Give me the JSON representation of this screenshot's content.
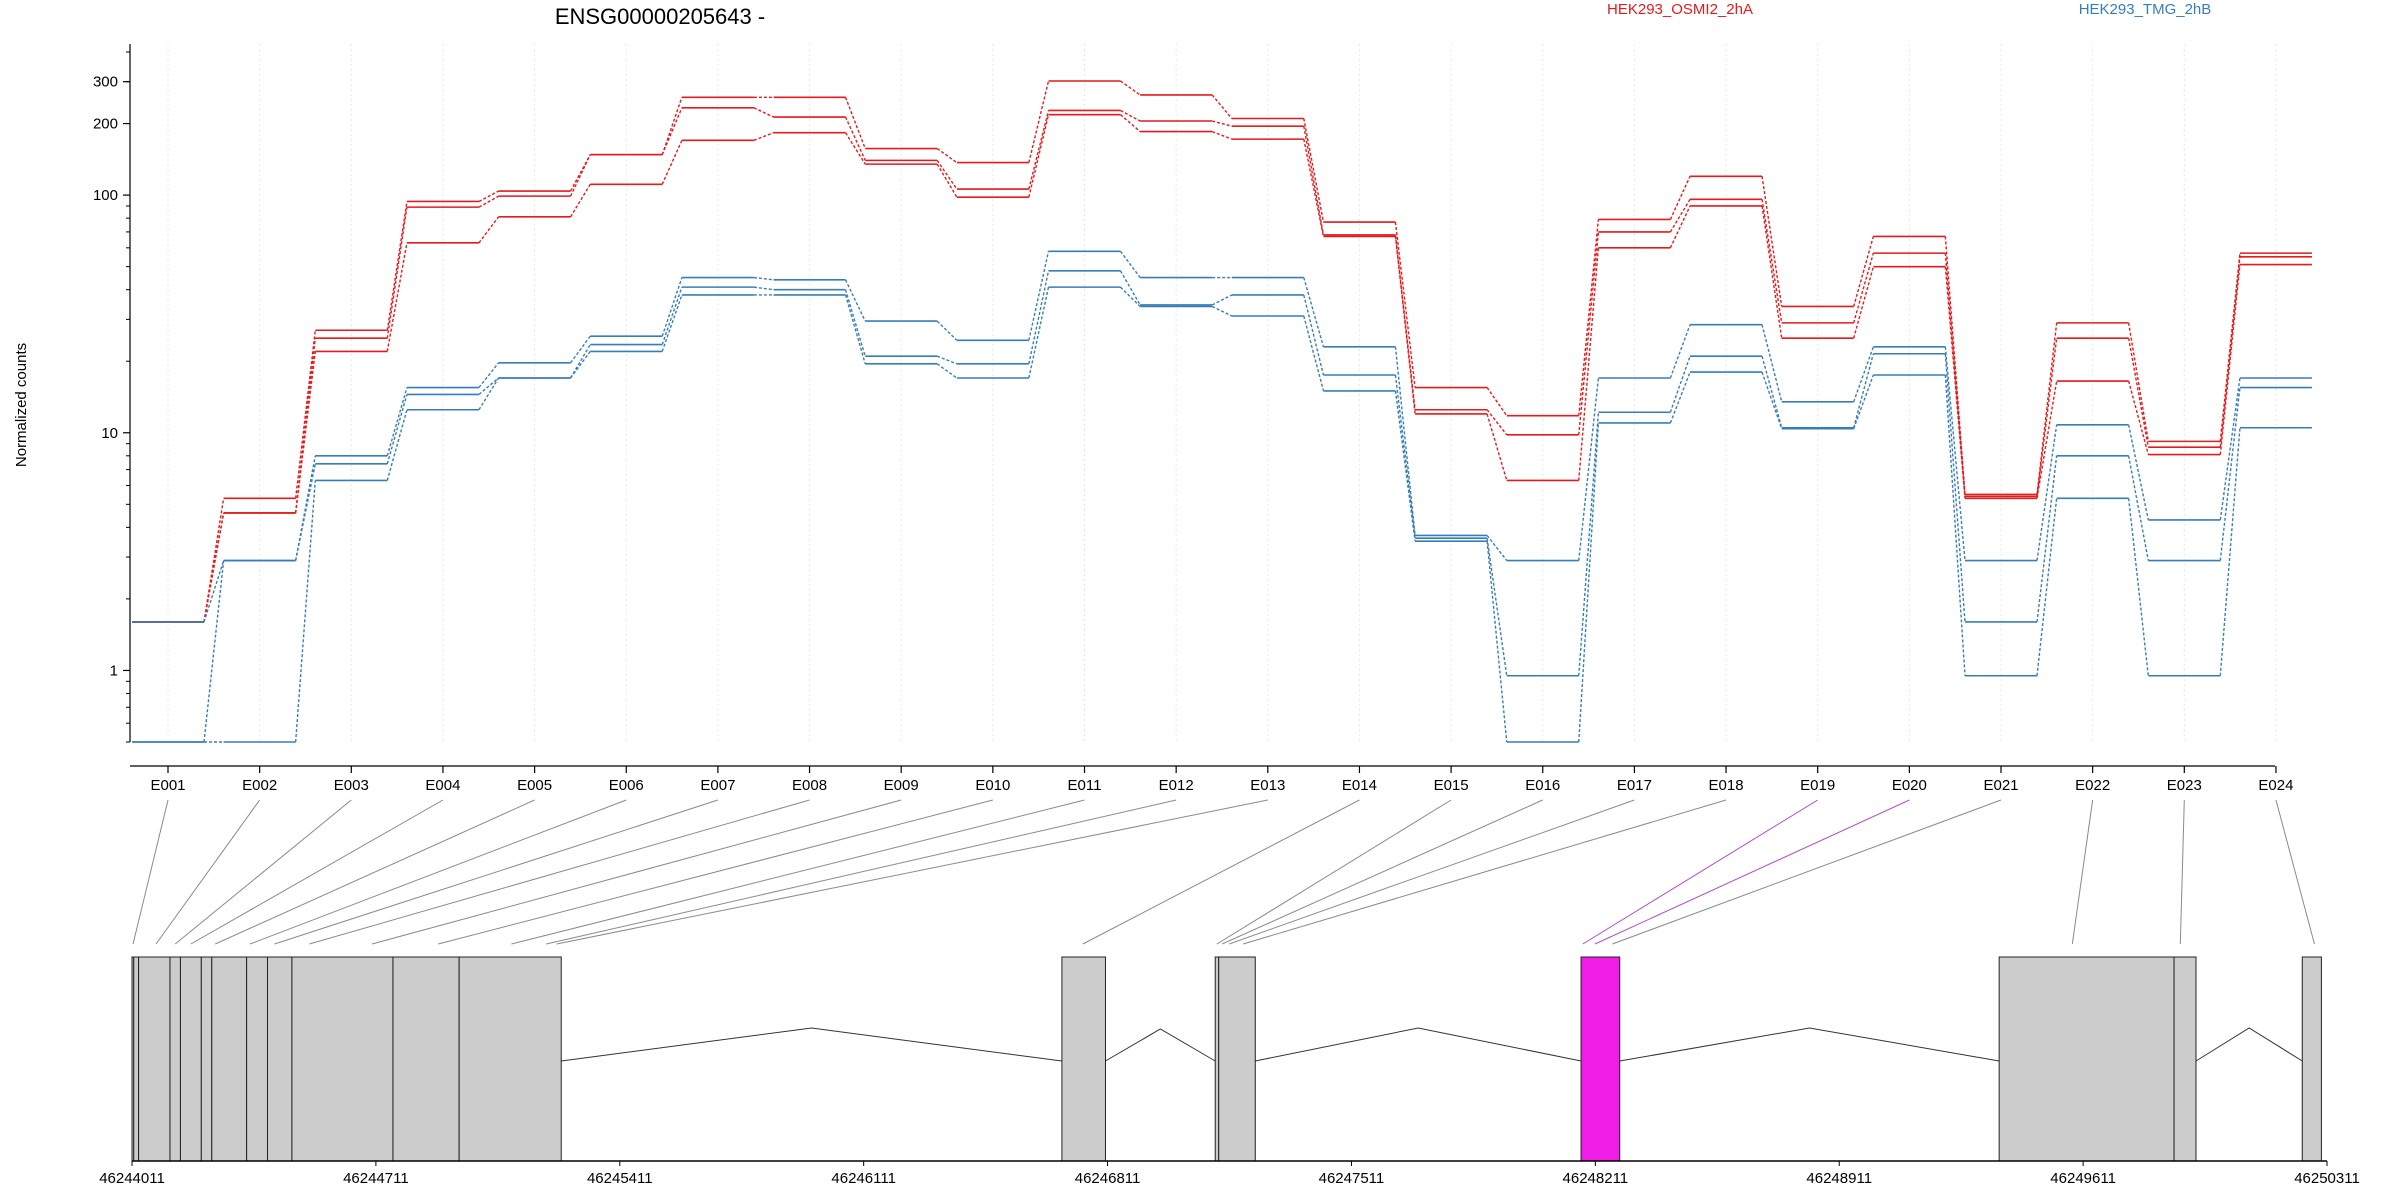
{
  "chart_data": {
    "type": "line",
    "title": "ENSG00000205643 -",
    "ylabel": "Normalized counts",
    "yscale": "log",
    "ylim": [
      0.5,
      400
    ],
    "yticks": [
      1,
      10,
      100,
      200,
      300
    ],
    "ytick_labels": [
      "1",
      "10",
      "100",
      "200",
      "300"
    ],
    "grid": "vertical",
    "legend_position": "top",
    "categories": [
      "E001",
      "E002",
      "E003",
      "E004",
      "E005",
      "E006",
      "E007",
      "E008",
      "E009",
      "E010",
      "E011",
      "E012",
      "E013",
      "E014",
      "E015",
      "E016",
      "E017",
      "E018",
      "E019",
      "E020",
      "E021",
      "E022",
      "E023",
      "E024"
    ],
    "series": [
      {
        "name": "HEK293_OSMI2_2hA",
        "group": "HEK293_OSMI2_2hA",
        "color": "#e41a1c",
        "values": [
          1.6,
          5.3,
          27,
          94,
          104,
          148,
          258,
          258,
          157,
          137,
          302,
          264,
          210,
          77,
          15.5,
          11.8,
          79,
          120,
          34,
          67,
          5.5,
          29,
          9.2,
          57
        ]
      },
      {
        "name": "",
        "group": "HEK293_OSMI2_2hA",
        "color": "#e41a1c",
        "values": [
          1.6,
          4.6,
          25,
          89,
          99,
          148,
          233,
          213,
          140,
          106,
          227,
          205,
          195,
          68,
          12.5,
          9.8,
          70,
          96,
          29,
          57,
          5.4,
          25,
          8.7,
          55
        ]
      },
      {
        "name": "",
        "group": "HEK293_OSMI2_2hA",
        "color": "#e41a1c",
        "values": [
          1.6,
          4.6,
          22,
          63,
          81,
          111,
          170,
          183,
          135,
          98,
          218,
          185,
          172,
          67,
          12.0,
          6.3,
          60,
          90,
          25,
          50,
          5.3,
          16.5,
          8.1,
          51
        ]
      },
      {
        "name": "HEK293_TMG_2hB",
        "group": "HEK293_TMG_2hB",
        "color": "#377eb8",
        "values": [
          1.6,
          2.9,
          8.0,
          15.5,
          19.7,
          25.5,
          45,
          44,
          29.5,
          24.5,
          58,
          45,
          45,
          23,
          3.7,
          2.9,
          17,
          28.5,
          13.5,
          23,
          2.9,
          10.8,
          4.3,
          17
        ]
      },
      {
        "name": "",
        "group": "HEK293_TMG_2hB",
        "color": "#377eb8",
        "values": [
          0.5,
          2.9,
          7.4,
          14.5,
          17,
          23.5,
          41,
          40,
          21,
          19.5,
          48,
          34.5,
          38,
          17.5,
          3.6,
          0.95,
          12.2,
          21,
          10.5,
          21.5,
          1.6,
          8.0,
          2.9,
          15.5
        ]
      },
      {
        "name": "",
        "group": "HEK293_TMG_2hB",
        "color": "#377eb8",
        "values": [
          0.5,
          0.5,
          6.3,
          12.5,
          17,
          22,
          38,
          38,
          19.5,
          17,
          41,
          34,
          31,
          15,
          3.5,
          0.5,
          11.0,
          18,
          10.4,
          17.5,
          0.95,
          5.3,
          0.95,
          10.5
        ]
      }
    ],
    "gene_model": {
      "coordinate_labels": [
        "46244011",
        "46244711",
        "46245411",
        "46246111",
        "46246811",
        "46247511",
        "46248211",
        "46248911",
        "46249611",
        "46250311"
      ],
      "highlighted_exon": "E019",
      "highlight_color": "#f01de6",
      "exon_color": "#cccccc"
    }
  }
}
